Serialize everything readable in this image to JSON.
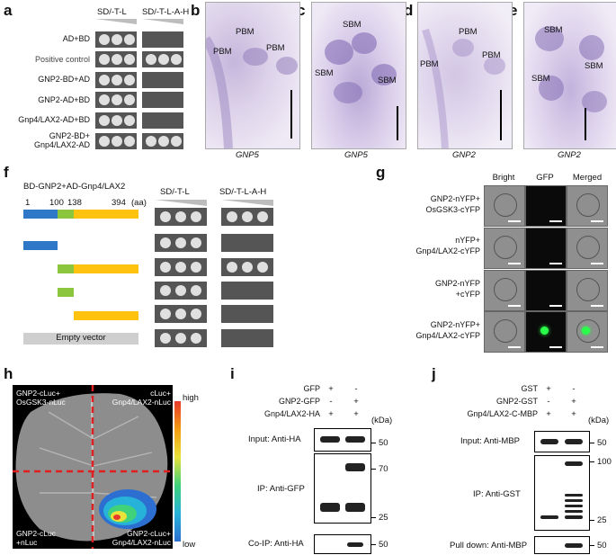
{
  "panels": {
    "a": "a",
    "b": "b",
    "c": "c",
    "d": "d",
    "e": "e",
    "f": "f",
    "g": "g",
    "h": "h",
    "i": "i",
    "j": "j"
  },
  "a": {
    "col1": "SD/-T-L",
    "col2": "SD/-T-L-A-H",
    "rows": [
      "AD+BD",
      "Positive control",
      "GNP2-BD+AD",
      "GNP2-AD+BD",
      "Gnp4/LAX2-AD+BD",
      "GNP2-BD+",
      "Gnp4/LAX2-AD"
    ]
  },
  "b": {
    "labels": [
      "PBM",
      "PBM",
      "PBM"
    ],
    "gene": "GNP5"
  },
  "c": {
    "labels": [
      "SBM",
      "SBM",
      "SBM"
    ],
    "gene": "GNP5"
  },
  "d": {
    "labels": [
      "PBM",
      "PBM",
      "PBM"
    ],
    "gene": "GNP2"
  },
  "e": {
    "labels": [
      "SBM",
      "SBM",
      "SBM"
    ],
    "gene": "GNP2"
  },
  "f": {
    "title": "BD-GNP2+AD-Gnp4/LAX2",
    "positions": [
      "1",
      "100",
      "138",
      "394",
      "(aa)"
    ],
    "col1": "SD/-T-L",
    "col2": "SD/-T-L-A-H",
    "empty": "Empty vector"
  },
  "g": {
    "cols": [
      "Bright",
      "GFP",
      "Merged"
    ],
    "rows": [
      "GNP2-nYFP+",
      "OsGSK3-cYFP",
      "nYFP+",
      "Gnp4/LAX2-cYFP",
      "GNP2-nYFP",
      "+cYFP",
      "GNP2-nYFP+",
      "Gnp4/LAX2-cYFP"
    ]
  },
  "h": {
    "tl": [
      "GNP2-cLuc+",
      "OsGSK3-nLuc"
    ],
    "tr": [
      "cLuc+",
      "Gnp4/LAX2-nLuc"
    ],
    "bl": [
      "GNP2-cLuc",
      "+nLuc"
    ],
    "br": [
      "GNP2-cLuc+",
      "Gnp4/LAX2-nLuc"
    ],
    "high": "high",
    "low": "low"
  },
  "i": {
    "rows": [
      "GFP",
      "GNP2-GFP",
      "Gnp4/LAX2-HA"
    ],
    "signs": [
      [
        "+",
        "-"
      ],
      [
        "-",
        "+"
      ],
      [
        "+",
        "+"
      ]
    ],
    "kda": "(kDa)",
    "input": "Input: Anti-HA",
    "ip": "IP: Anti-GFP",
    "coip": "Co-IP: Anti-HA",
    "m_input": "50",
    "m_ip1": "70",
    "m_ip2": "25",
    "m_coip": "50"
  },
  "j": {
    "rows": [
      "GST",
      "GNP2-GST",
      "Gnp4/LAX2-C-MBP"
    ],
    "signs": [
      [
        "+",
        "-"
      ],
      [
        "-",
        "+"
      ],
      [
        "+",
        "+"
      ]
    ],
    "kda": "(kDa)",
    "input": "Input: Anti-MBP",
    "ip": "IP: Anti-GST",
    "pull": "Pull down: Anti-MBP",
    "m_input": "50",
    "m_ip1": "100",
    "m_ip2": "25",
    "m_pull": "50"
  },
  "colors": {
    "spot": "#d8d8d8",
    "plate": "#555555",
    "blue": "#2e78c7",
    "green": "#8cc63f",
    "yellow": "#ffc20e",
    "gray": "#cfcfcf",
    "red": "#e02020"
  }
}
